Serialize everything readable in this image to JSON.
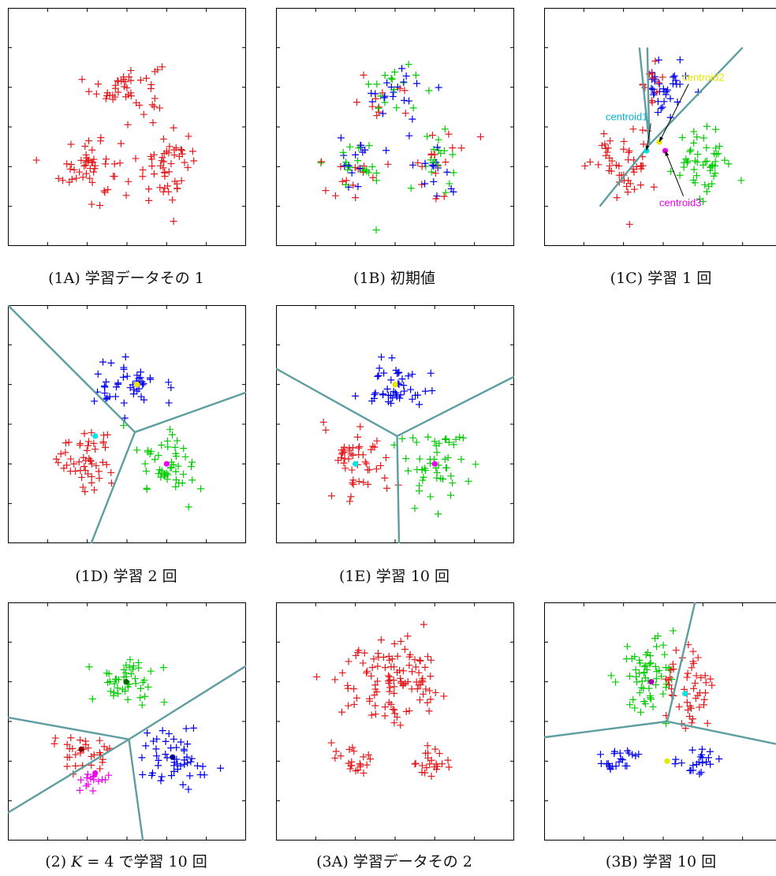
{
  "chart_data": [
    {
      "id": "1A",
      "type": "scatter",
      "caption": "(1A) 学習データその 1",
      "clusters": [
        {
          "center": [
            0,
            1.0
          ],
          "sigma": [
            0.45,
            0.33
          ],
          "n": 45,
          "color": "#e31a1c"
        },
        {
          "center": [
            -0.95,
            -1.0
          ],
          "sigma": [
            0.38,
            0.45
          ],
          "n": 50,
          "color": "#e31a1c"
        },
        {
          "center": [
            1.0,
            -1.0
          ],
          "sigma": [
            0.38,
            0.45
          ],
          "n": 50,
          "color": "#e31a1c"
        }
      ]
    },
    {
      "id": "1B",
      "type": "scatter",
      "caption": "(1B) 初期値",
      "clusters": [
        {
          "center": [
            0,
            1.0
          ],
          "sigma": [
            0.45,
            0.33
          ],
          "n": 45,
          "mixed": true
        },
        {
          "center": [
            -0.95,
            -1.0
          ],
          "sigma": [
            0.38,
            0.45
          ],
          "n": 50,
          "mixed": true
        },
        {
          "center": [
            1.0,
            -1.0
          ],
          "sigma": [
            0.38,
            0.45
          ],
          "n": 50,
          "mixed": true
        }
      ],
      "mixed_colors": [
        "#e31a1c",
        "#00cc00",
        "#0000ee"
      ]
    },
    {
      "id": "1C",
      "type": "scatter",
      "caption": "(1C) 学習 1 回",
      "clusters": [
        {
          "center": [
            0.1,
            1.05
          ],
          "sigma": [
            0.35,
            0.33
          ],
          "n": 35,
          "color": "#0000ee",
          "minx": -0.3,
          "extra": [
            {
              "center": [
                -0.35,
                1.1
              ],
              "sigma": [
                0.15,
                0.3
              ],
              "n": 12,
              "color": "#e31a1c"
            }
          ]
        },
        {
          "center": [
            -0.95,
            -1.0
          ],
          "sigma": [
            0.38,
            0.45
          ],
          "n": 50,
          "color": "#e31a1c"
        },
        {
          "center": [
            1.0,
            -0.9
          ],
          "sigma": [
            0.38,
            0.45
          ],
          "n": 50,
          "color": "#00cc00"
        }
      ],
      "boundaries": [
        [
          [
            -0.6,
            2.0
          ],
          [
            -0.35,
            -0.45
          ],
          [
            -1.6,
            -2.0
          ]
        ],
        [
          [
            -0.35,
            -0.45
          ],
          [
            2.0,
            2.0
          ]
        ],
        [
          [
            -0.35,
            -0.45
          ],
          [
            -0.4,
            2.0
          ]
        ]
      ],
      "centroids": [
        {
          "pos": [
            -0.42,
            -0.6
          ],
          "color": "#00e5e5"
        },
        {
          "pos": [
            -0.1,
            -0.38
          ],
          "color": "#e6e600"
        },
        {
          "pos": [
            0.05,
            -0.6
          ],
          "color": "#ee00ee"
        }
      ],
      "annotations": [
        {
          "text": "centroid1",
          "color": "#00b4d8",
          "pos": [
            -1.45,
            0.17
          ],
          "arrow_to": [
            -0.42,
            -0.6
          ]
        },
        {
          "text": "centroid2",
          "color": "#e6e600",
          "pos": [
            0.48,
            1.16
          ],
          "arrow_to": [
            -0.1,
            -0.38
          ]
        },
        {
          "text": "centroid3",
          "color": "#ee00ee",
          "pos": [
            -0.1,
            -2.0
          ],
          "arrow_to": [
            0.05,
            -0.6
          ]
        }
      ]
    },
    {
      "id": "1D",
      "type": "scatter",
      "caption": "(1D) 学習 2 回",
      "clusters": [
        {
          "center": [
            0,
            1.0
          ],
          "sigma": [
            0.45,
            0.33
          ],
          "n": 45,
          "color": "#0000ee"
        },
        {
          "center": [
            -0.95,
            -1.0
          ],
          "sigma": [
            0.38,
            0.45
          ],
          "n": 50,
          "color": "#e31a1c"
        },
        {
          "center": [
            1.0,
            -1.0
          ],
          "sigma": [
            0.38,
            0.45
          ],
          "n": 50,
          "color": "#00cc00"
        }
      ],
      "boundaries": [
        [
          [
            -3.0,
            3.0
          ],
          [
            0.2,
            -0.2
          ],
          [
            3.0,
            0.8
          ]
        ],
        [
          [
            0.2,
            -0.2
          ],
          [
            -0.9,
            -3.0
          ]
        ]
      ],
      "centroids": [
        {
          "pos": [
            -0.8,
            -0.3
          ],
          "color": "#00e5e5"
        },
        {
          "pos": [
            0.25,
            1.0
          ],
          "color": "#e6e600"
        },
        {
          "pos": [
            1.0,
            -1.0
          ],
          "color": "#ee00ee"
        }
      ]
    },
    {
      "id": "1E",
      "type": "scatter",
      "caption": "(1E) 学習 10 回",
      "clusters": [
        {
          "center": [
            0,
            1.0
          ],
          "sigma": [
            0.45,
            0.33
          ],
          "n": 45,
          "color": "#0000ee"
        },
        {
          "center": [
            -0.95,
            -1.0
          ],
          "sigma": [
            0.38,
            0.45
          ],
          "n": 50,
          "color": "#e31a1c"
        },
        {
          "center": [
            1.0,
            -1.0
          ],
          "sigma": [
            0.38,
            0.45
          ],
          "n": 50,
          "color": "#00cc00"
        }
      ],
      "boundaries": [
        [
          [
            -3.0,
            1.4
          ],
          [
            0.05,
            -0.3
          ],
          [
            3.0,
            1.2
          ]
        ],
        [
          [
            0.05,
            -0.3
          ],
          [
            0.1,
            -3.0
          ]
        ]
      ],
      "centroids": [
        {
          "pos": [
            -1.0,
            -1.0
          ],
          "color": "#00e5e5"
        },
        {
          "pos": [
            0.0,
            1.0
          ],
          "color": "#e6e600"
        },
        {
          "pos": [
            1.0,
            -1.0
          ],
          "color": "#ee00ee"
        }
      ]
    },
    {
      "id": "2",
      "type": "scatter",
      "caption": "(2) K = 4 で学習 10 回",
      "caption_parts": [
        "(2) ",
        "K",
        " = 4 で学習 10 回"
      ],
      "clusters": [
        {
          "center": [
            0,
            1.0
          ],
          "sigma": [
            0.4,
            0.33
          ],
          "n": 45,
          "color": "#00cc00"
        },
        {
          "center": [
            -1.05,
            -0.8
          ],
          "sigma": [
            0.35,
            0.3
          ],
          "n": 32,
          "color": "#e31a1c"
        },
        {
          "center": [
            -0.75,
            -1.4
          ],
          "sigma": [
            0.25,
            0.18
          ],
          "n": 15,
          "color": "#ee00ee"
        },
        {
          "center": [
            1.15,
            -0.95
          ],
          "sigma": [
            0.38,
            0.4
          ],
          "n": 50,
          "color": "#0000ee"
        }
      ],
      "boundaries": [
        [
          [
            -3.0,
            0.1
          ],
          [
            0.05,
            -0.45
          ],
          [
            3.0,
            1.4
          ]
        ],
        [
          [
            0.05,
            -0.45
          ],
          [
            -3.0,
            -2.3
          ]
        ],
        [
          [
            0.05,
            -0.45
          ],
          [
            0.4,
            -3.0
          ]
        ]
      ],
      "centroids": [
        {
          "pos": [
            -0.02,
            1.0
          ],
          "color": "#006400"
        },
        {
          "pos": [
            -1.15,
            -0.7
          ],
          "color": "#8b0000"
        },
        {
          "pos": [
            -0.8,
            -1.3
          ],
          "color": "#ee00ee"
        },
        {
          "pos": [
            1.15,
            -0.9
          ],
          "color": "#00008b"
        }
      ]
    },
    {
      "id": "3A",
      "type": "scatter",
      "caption": "(3A) 学習データその 2",
      "clusters": [
        {
          "center": [
            0,
            1.05
          ],
          "sigma": [
            0.7,
            0.6
          ],
          "n": 110,
          "color": "#e31a1c"
        },
        {
          "center": [
            -1.05,
            -1.0
          ],
          "sigma": [
            0.28,
            0.2
          ],
          "n": 22,
          "color": "#e31a1c"
        },
        {
          "center": [
            0.9,
            -1.0
          ],
          "sigma": [
            0.28,
            0.2
          ],
          "n": 22,
          "color": "#e31a1c"
        }
      ]
    },
    {
      "id": "3B",
      "type": "scatter",
      "caption": "(3B) 学習 10 回",
      "clusters": [
        {
          "center": [
            -0.35,
            1.05
          ],
          "sigma": [
            0.38,
            0.5
          ],
          "n": 60,
          "color": "#00cc00",
          "maxx": 0.35
        },
        {
          "center": [
            0.6,
            0.85
          ],
          "sigma": [
            0.35,
            0.55
          ],
          "n": 50,
          "color": "#e31a1c",
          "minx": 0.05
        },
        {
          "center": [
            -1.05,
            -1.0
          ],
          "sigma": [
            0.28,
            0.2
          ],
          "n": 22,
          "color": "#0000ee"
        },
        {
          "center": [
            0.9,
            -1.0
          ],
          "sigma": [
            0.28,
            0.2
          ],
          "n": 22,
          "color": "#0000ee"
        }
      ],
      "boundaries": [
        [
          [
            -3.0,
            -0.4
          ],
          [
            0.1,
            0.0
          ],
          [
            3.0,
            -0.6
          ]
        ],
        [
          [
            0.1,
            0.0
          ],
          [
            0.8,
            3.0
          ]
        ]
      ],
      "centroids": [
        {
          "pos": [
            -0.3,
            1.0
          ],
          "color": "#aa00aa"
        },
        {
          "pos": [
            0.55,
            0.7
          ],
          "color": "#00e5e5"
        },
        {
          "pos": [
            0.1,
            -1.0
          ],
          "color": "#e6e600"
        }
      ]
    }
  ]
}
